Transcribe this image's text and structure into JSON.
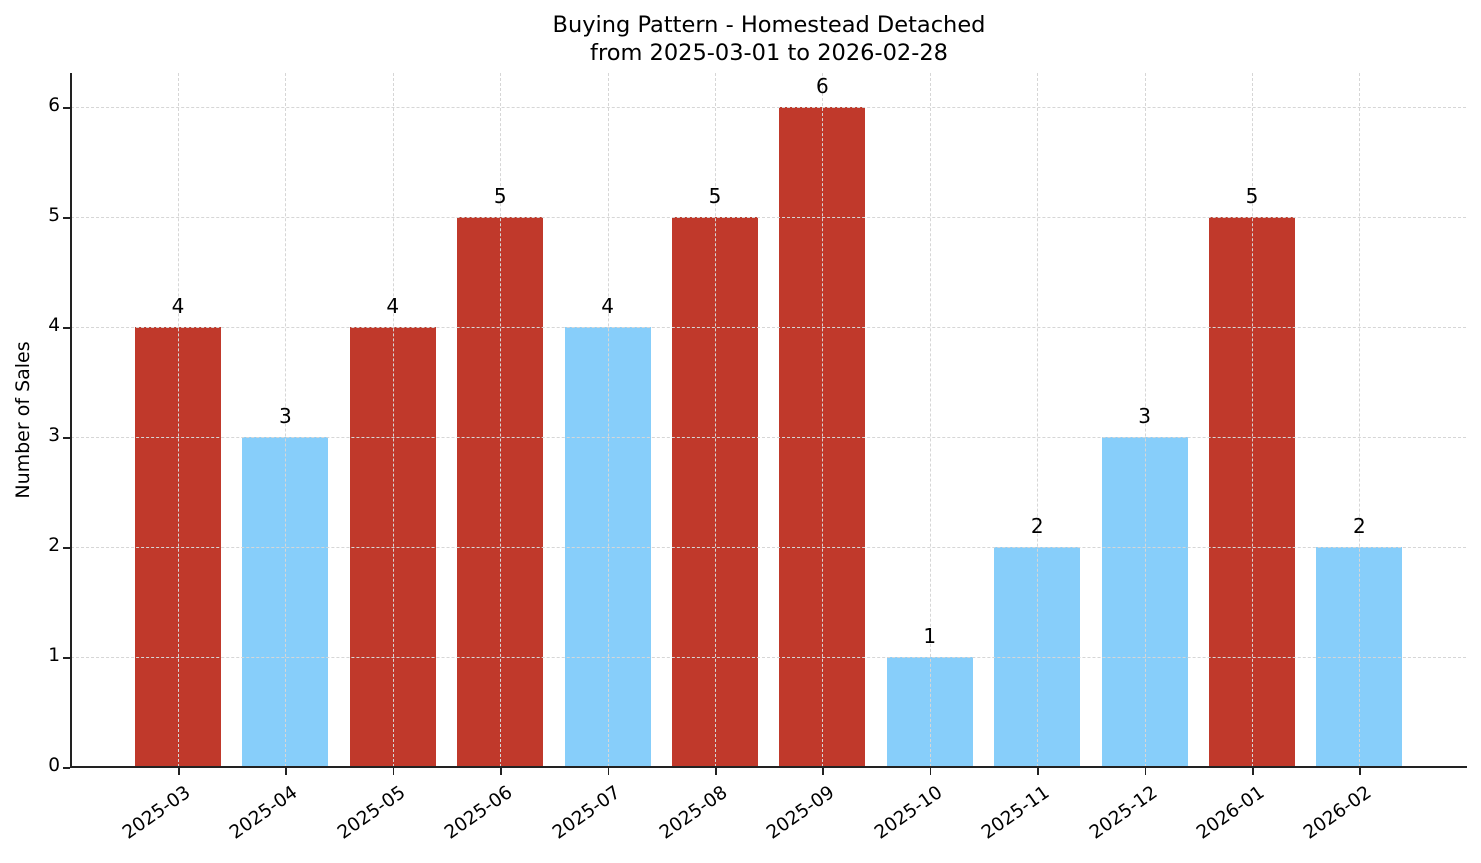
{
  "chart_data": {
    "type": "bar",
    "title": "Buying Pattern - Homestead Detached",
    "subtitle": "from 2025-03-01 to 2026-02-28",
    "xlabel": "",
    "ylabel": "Number of Sales",
    "ylim": [
      0,
      6.3
    ],
    "yticks": [
      0,
      1,
      2,
      3,
      4,
      5,
      6
    ],
    "grid": true,
    "legend": null,
    "categories": [
      "2025-03",
      "2025-04",
      "2025-05",
      "2025-06",
      "2025-07",
      "2025-08",
      "2025-09",
      "2025-10",
      "2025-11",
      "2025-12",
      "2026-01",
      "2026-02"
    ],
    "values": [
      4,
      3,
      4,
      5,
      4,
      5,
      6,
      1,
      2,
      3,
      5,
      2
    ],
    "bar_colors": [
      "#c0392b",
      "#87cefa",
      "#c0392b",
      "#c0392b",
      "#87cefa",
      "#c0392b",
      "#c0392b",
      "#87cefa",
      "#87cefa",
      "#87cefa",
      "#c0392b",
      "#87cefa"
    ],
    "data_labels": [
      "4",
      "3",
      "4",
      "5",
      "4",
      "5",
      "6",
      "1",
      "2",
      "3",
      "5",
      "2"
    ]
  },
  "colors": {
    "above_threshold": "#c0392b",
    "below_threshold": "#87cefa",
    "grid": "#d6d6d6",
    "axis": "#222222"
  }
}
